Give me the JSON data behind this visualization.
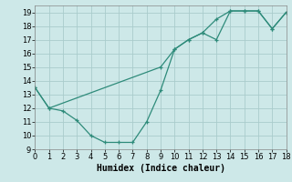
{
  "line1_x": [
    0,
    1,
    2,
    3,
    4,
    5,
    6,
    7,
    8,
    9,
    10,
    11,
    12,
    13,
    14,
    15,
    16,
    17,
    18
  ],
  "line1_y": [
    13.5,
    12.0,
    11.8,
    11.1,
    10.0,
    9.5,
    9.5,
    9.5,
    11.0,
    13.3,
    16.3,
    17.0,
    17.5,
    18.5,
    19.1,
    19.1,
    19.1,
    17.8,
    19.0
  ],
  "line2_x": [
    0,
    1,
    9,
    10,
    11,
    12,
    13,
    14,
    15,
    16,
    17,
    18
  ],
  "line2_y": [
    13.5,
    12.0,
    15.0,
    16.3,
    17.0,
    17.5,
    17.0,
    19.1,
    19.1,
    19.1,
    17.8,
    19.0
  ],
  "line_color": "#2e8b7a",
  "bg_color": "#cde8e8",
  "grid_color": "#aacccc",
  "xlabel": "Humidex (Indice chaleur)",
  "xlim": [
    0,
    18
  ],
  "ylim": [
    9,
    19.5
  ],
  "xticks": [
    0,
    1,
    2,
    3,
    4,
    5,
    6,
    7,
    8,
    9,
    10,
    11,
    12,
    13,
    14,
    15,
    16,
    17,
    18
  ],
  "yticks": [
    9,
    10,
    11,
    12,
    13,
    14,
    15,
    16,
    17,
    18,
    19
  ],
  "xlabel_fontsize": 7,
  "tick_fontsize": 6
}
